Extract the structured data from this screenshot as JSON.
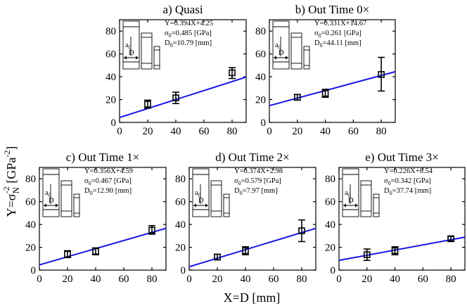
{
  "figure": {
    "ylabel_main": "Y=σ",
    "ylabel_sub": "N",
    "ylabel_sup": "-2",
    "ylabel_unit": " [GPa",
    "ylabel_unit_sup": "-2",
    "ylabel_close": "]",
    "xlabel": "X=D [mm]"
  },
  "chart_data": [
    {
      "type": "scatter",
      "title": "a) Quasi",
      "x": [
        20,
        40,
        80
      ],
      "y": [
        16,
        21.5,
        43.5
      ],
      "err_low": [
        12.5,
        16.5,
        38.5
      ],
      "err_high": [
        19.5,
        26.5,
        48
      ],
      "fit": {
        "slope": 0.394,
        "intercept": 4.25
      },
      "xlim": [
        0,
        90
      ],
      "ylim": [
        0,
        90
      ],
      "xticks": [
        0,
        20,
        40,
        60,
        80
      ],
      "yticks": [
        0,
        20,
        40,
        60,
        80
      ],
      "annotation": {
        "equation": "Y=0.394X+4.25",
        "sigma_label": "σ",
        "sigma_sub": "0",
        "sigma_value": "=0.485 [GPa]",
        "d_label": "D",
        "d_sub": "0",
        "d_value": "=10.79 [mm]"
      },
      "inset": {
        "a_label": "a",
        "a_sub": "0",
        "d_label": "D"
      }
    },
    {
      "type": "scatter",
      "title": "b) Out Time 0×",
      "x": [
        20,
        40,
        80
      ],
      "y": [
        22,
        25.5,
        42
      ],
      "err_low": [
        19.5,
        22,
        27.5
      ],
      "err_high": [
        24.5,
        29,
        57
      ],
      "fit": {
        "slope": 0.331,
        "intercept": 14.67
      },
      "xlim": [
        0,
        90
      ],
      "ylim": [
        0,
        90
      ],
      "xticks": [
        0,
        20,
        40,
        60,
        80
      ],
      "yticks": [
        0,
        20,
        40,
        60,
        80
      ],
      "annotation": {
        "equation": "Y=0.331X+14.67",
        "sigma_label": "σ",
        "sigma_sub": "0",
        "sigma_value": "=0.261 [GPa]",
        "d_label": "D",
        "d_sub": "0",
        "d_value": "=44.11 [mm]"
      },
      "inset": {
        "a_label": "a",
        "a_sub": "0",
        "d_label": "D"
      }
    },
    {
      "type": "scatter",
      "title": "c) Out Time 1×",
      "x": [
        20,
        40,
        80
      ],
      "y": [
        14,
        16.5,
        35
      ],
      "err_low": [
        11,
        13.5,
        31.5
      ],
      "err_high": [
        17,
        19.5,
        39
      ],
      "fit": {
        "slope": 0.356,
        "intercept": 4.59
      },
      "xlim": [
        0,
        90
      ],
      "ylim": [
        0,
        90
      ],
      "xticks": [
        0,
        20,
        40,
        60,
        80
      ],
      "yticks": [
        0,
        20,
        40,
        60,
        80
      ],
      "annotation": {
        "equation": "Y=0.356X+4.59",
        "sigma_label": "σ",
        "sigma_sub": "0",
        "sigma_value": "=0.467 [GPa]",
        "d_label": "D",
        "d_sub": "0",
        "d_value": "=12.90 [mm]"
      },
      "inset": {
        "a_label": "a",
        "a_sub": "0",
        "d_label": "D"
      }
    },
    {
      "type": "scatter",
      "title": "d) Out Time 2×",
      "x": [
        20,
        40,
        80
      ],
      "y": [
        11.5,
        17,
        34.5
      ],
      "err_low": [
        9,
        13.5,
        25
      ],
      "err_high": [
        14,
        20.5,
        44
      ],
      "fit": {
        "slope": 0.374,
        "intercept": 2.98
      },
      "xlim": [
        0,
        90
      ],
      "ylim": [
        0,
        90
      ],
      "xticks": [
        0,
        20,
        40,
        60,
        80
      ],
      "yticks": [
        0,
        20,
        40,
        60,
        80
      ],
      "annotation": {
        "equation": "Y=0.374X+2.98",
        "sigma_label": "σ",
        "sigma_sub": "0",
        "sigma_value": "=0.579 [GPa]",
        "d_label": "D",
        "d_sub": "0",
        "d_value": "=7.97 [mm]"
      },
      "inset": {
        "a_label": "a",
        "a_sub": "0",
        "d_label": "D"
      }
    },
    {
      "type": "scatter",
      "title": "e) Out Time 3×",
      "x": [
        20,
        40,
        80
      ],
      "y": [
        13.5,
        17,
        27.5
      ],
      "err_low": [
        8.5,
        13.5,
        25.5
      ],
      "err_high": [
        18.5,
        20.5,
        29.5
      ],
      "fit": {
        "slope": 0.226,
        "intercept": 8.54
      },
      "xlim": [
        0,
        90
      ],
      "ylim": [
        0,
        90
      ],
      "xticks": [
        0,
        20,
        40,
        60,
        80
      ],
      "yticks": [
        0,
        20,
        40,
        60,
        80
      ],
      "annotation": {
        "equation": "Y=0.226X+8.54",
        "sigma_label": "σ",
        "sigma_sub": "0",
        "sigma_value": "=0.342 [GPa]",
        "d_label": "D",
        "d_sub": "0",
        "d_value": "=37.74 [mm]"
      },
      "inset": {
        "a_label": "a",
        "a_sub": "0",
        "d_label": "D"
      }
    }
  ]
}
